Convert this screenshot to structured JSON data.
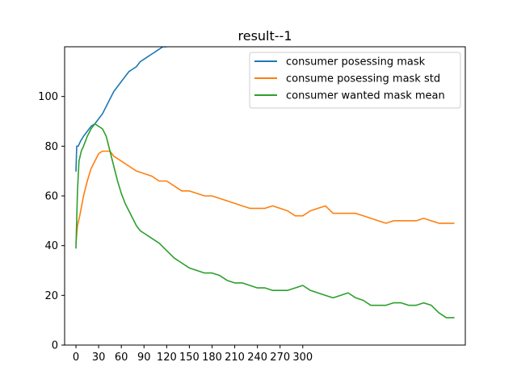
{
  "chart_data": {
    "type": "line",
    "title": "result--1",
    "xlabel": "",
    "ylabel": "",
    "xlim": [
      -15,
      515
    ],
    "ylim": [
      0,
      120
    ],
    "x_ticks": [
      0,
      30,
      60,
      90,
      120,
      150,
      180,
      210,
      240,
      270,
      300
    ],
    "x_tick_labels": [
      "0",
      "30",
      "60",
      "90",
      "120",
      "150",
      "180",
      "210",
      "240",
      "270",
      "300"
    ],
    "y_ticks": [
      0,
      20,
      40,
      60,
      80,
      100
    ],
    "y_tick_labels": [
      "0",
      "20",
      "40",
      "60",
      "80",
      "100"
    ],
    "grid": false,
    "legend_position": "upper right",
    "series": [
      {
        "name": "consumer posessing mask",
        "color": "#1f77b4",
        "x": [
          0,
          1,
          3,
          6,
          10,
          15,
          20,
          25,
          30,
          35,
          40,
          45,
          50,
          55,
          60,
          65,
          70,
          75,
          80,
          85,
          90,
          95,
          100,
          105,
          110,
          115,
          120,
          123
        ],
        "y": [
          70,
          80,
          80,
          82,
          84,
          86,
          88,
          89,
          91,
          93,
          96,
          99,
          102,
          104,
          106,
          108,
          110,
          111,
          112,
          114,
          115,
          116,
          117,
          118,
          119,
          120,
          120,
          121
        ]
      },
      {
        "name": "consume posessing mask std",
        "color": "#ff7f0e",
        "x": [
          0,
          2,
          5,
          10,
          15,
          20,
          25,
          30,
          35,
          40,
          45,
          50,
          60,
          70,
          80,
          90,
          100,
          110,
          120,
          130,
          140,
          150,
          160,
          170,
          180,
          190,
          200,
          210,
          220,
          230,
          240,
          250,
          260,
          270,
          280,
          290,
          300,
          310,
          320,
          330,
          340,
          350,
          360,
          370,
          380,
          390,
          400,
          410,
          420,
          430,
          440,
          450,
          460,
          470,
          480,
          490,
          500
        ],
        "y": [
          41,
          48,
          52,
          60,
          66,
          71,
          74,
          77,
          78,
          78,
          78,
          76,
          74,
          72,
          70,
          69,
          68,
          66,
          66,
          64,
          62,
          62,
          61,
          60,
          60,
          59,
          58,
          57,
          56,
          55,
          55,
          55,
          56,
          55,
          54,
          52,
          52,
          54,
          55,
          56,
          53,
          53,
          53,
          53,
          52,
          51,
          50,
          49,
          50,
          50,
          50,
          50,
          51,
          50,
          49,
          49,
          49
        ]
      },
      {
        "name": "consumer wanted mask mean",
        "color": "#2ca02c",
        "x": [
          0,
          2,
          4,
          7,
          10,
          15,
          20,
          25,
          30,
          35,
          40,
          45,
          50,
          55,
          60,
          65,
          70,
          75,
          80,
          85,
          90,
          95,
          100,
          110,
          120,
          130,
          140,
          150,
          160,
          170,
          180,
          190,
          200,
          210,
          220,
          230,
          240,
          250,
          260,
          270,
          280,
          290,
          300,
          310,
          320,
          330,
          340,
          350,
          360,
          370,
          380,
          390,
          400,
          410,
          420,
          430,
          440,
          450,
          460,
          470,
          480,
          490,
          500
        ],
        "y": [
          39,
          62,
          74,
          78,
          80,
          84,
          87,
          89,
          88,
          87,
          84,
          78,
          72,
          66,
          61,
          57,
          54,
          51,
          48,
          46,
          45,
          44,
          43,
          41,
          38,
          35,
          33,
          31,
          30,
          29,
          29,
          28,
          26,
          25,
          25,
          24,
          23,
          23,
          22,
          22,
          22,
          23,
          24,
          22,
          21,
          20,
          19,
          20,
          21,
          19,
          18,
          16,
          16,
          16,
          17,
          17,
          16,
          16,
          17,
          16,
          13,
          11,
          11
        ]
      }
    ]
  }
}
